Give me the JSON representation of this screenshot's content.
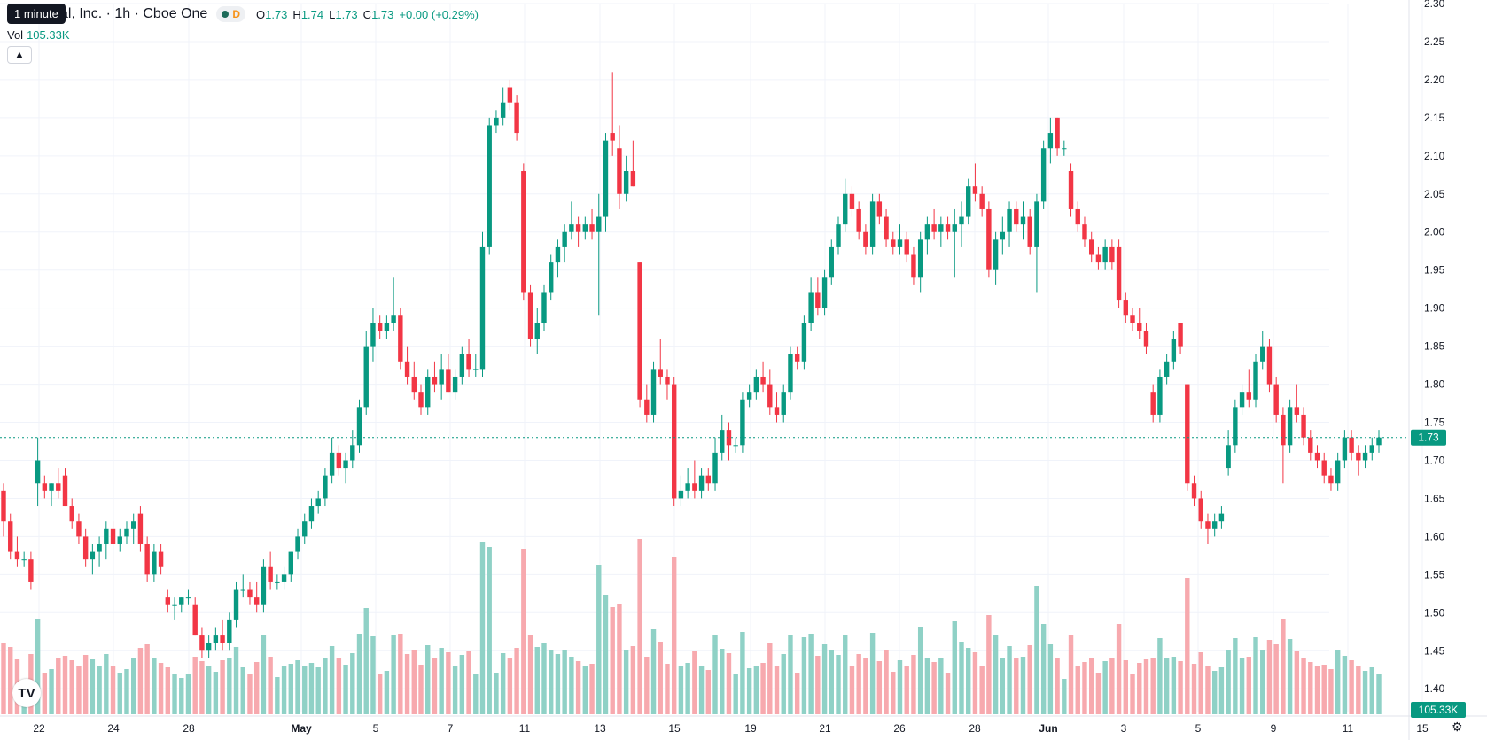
{
  "header": {
    "tooltip": "1 minute",
    "symbol": "ital, Inc. · 1h · Cboe One",
    "badge": "D",
    "o_label": "O",
    "o": "1.73",
    "h_label": "H",
    "h": "1.74",
    "l_label": "L",
    "l": "1.73",
    "c_label": "C",
    "c": "1.73",
    "change": "+0.00 (+0.29%)"
  },
  "volume": {
    "label": "Vol",
    "value": "105.33K"
  },
  "colors": {
    "up": "#089981",
    "down": "#f23645",
    "up_vol": "#8fd1c6",
    "down_vol": "#f7a9ae",
    "grid": "#f0f3fa"
  },
  "chart_data": {
    "type": "candlestick",
    "y_axis": {
      "min": 1.37,
      "max": 2.3,
      "ticks": [
        "2.30",
        "2.25",
        "2.20",
        "2.15",
        "2.10",
        "2.05",
        "2.00",
        "1.95",
        "1.90",
        "1.85",
        "1.80",
        "1.75",
        "1.70",
        "1.65",
        "1.60",
        "1.55",
        "1.50",
        "1.45",
        "1.40"
      ]
    },
    "x_ticks": [
      "22",
      "24",
      "28",
      "May",
      "5",
      "7",
      "11",
      "13",
      "15",
      "19",
      "21",
      "26",
      "28",
      "Jun",
      "3",
      "5",
      "9",
      "11",
      "15"
    ],
    "last_price": "1.73",
    "last_volume": "105.33K",
    "candles_approx": [
      [
        1.66,
        1.67,
        1.6,
        1.62
      ],
      [
        1.62,
        1.63,
        1.57,
        1.58
      ],
      [
        1.58,
        1.6,
        1.56,
        1.57
      ],
      [
        1.57,
        1.58,
        1.56,
        1.57
      ],
      [
        1.57,
        1.58,
        1.53,
        1.54
      ],
      [
        1.67,
        1.73,
        1.64,
        1.7
      ],
      [
        1.67,
        1.68,
        1.65,
        1.66
      ],
      [
        1.66,
        1.67,
        1.64,
        1.67
      ],
      [
        1.67,
        1.69,
        1.65,
        1.66
      ],
      [
        1.68,
        1.69,
        1.64,
        1.64
      ],
      [
        1.64,
        1.65,
        1.61,
        1.62
      ],
      [
        1.62,
        1.63,
        1.59,
        1.6
      ],
      [
        1.6,
        1.61,
        1.56,
        1.57
      ],
      [
        1.57,
        1.59,
        1.55,
        1.58
      ],
      [
        1.58,
        1.6,
        1.56,
        1.59
      ],
      [
        1.59,
        1.62,
        1.57,
        1.61
      ],
      [
        1.61,
        1.62,
        1.59,
        1.59
      ],
      [
        1.59,
        1.61,
        1.58,
        1.6
      ],
      [
        1.6,
        1.62,
        1.59,
        1.61
      ],
      [
        1.61,
        1.63,
        1.59,
        1.62
      ],
      [
        1.63,
        1.64,
        1.58,
        1.59
      ],
      [
        1.59,
        1.6,
        1.54,
        1.55
      ],
      [
        1.55,
        1.59,
        1.54,
        1.58
      ],
      [
        1.58,
        1.59,
        1.55,
        1.56
      ],
      [
        1.52,
        1.53,
        1.5,
        1.51
      ],
      [
        1.51,
        1.52,
        1.49,
        1.51
      ],
      [
        1.51,
        1.52,
        1.5,
        1.52
      ],
      [
        1.52,
        1.53,
        1.51,
        1.52
      ],
      [
        1.51,
        1.52,
        1.47,
        1.47
      ],
      [
        1.47,
        1.48,
        1.44,
        1.45
      ],
      [
        1.45,
        1.47,
        1.44,
        1.46
      ],
      [
        1.46,
        1.48,
        1.45,
        1.47
      ],
      [
        1.47,
        1.49,
        1.45,
        1.46
      ],
      [
        1.46,
        1.5,
        1.45,
        1.49
      ],
      [
        1.49,
        1.54,
        1.48,
        1.53
      ],
      [
        1.53,
        1.55,
        1.52,
        1.53
      ],
      [
        1.53,
        1.54,
        1.51,
        1.52
      ],
      [
        1.52,
        1.54,
        1.5,
        1.51
      ],
      [
        1.51,
        1.57,
        1.5,
        1.56
      ],
      [
        1.56,
        1.58,
        1.53,
        1.54
      ],
      [
        1.54,
        1.55,
        1.53,
        1.54
      ],
      [
        1.54,
        1.56,
        1.53,
        1.55
      ],
      [
        1.55,
        1.58,
        1.54,
        1.58
      ],
      [
        1.58,
        1.61,
        1.57,
        1.6
      ],
      [
        1.6,
        1.63,
        1.59,
        1.62
      ],
      [
        1.62,
        1.65,
        1.61,
        1.64
      ],
      [
        1.64,
        1.66,
        1.63,
        1.65
      ],
      [
        1.65,
        1.69,
        1.64,
        1.68
      ],
      [
        1.68,
        1.73,
        1.67,
        1.71
      ],
      [
        1.71,
        1.72,
        1.68,
        1.69
      ],
      [
        1.69,
        1.71,
        1.67,
        1.7
      ],
      [
        1.7,
        1.74,
        1.69,
        1.72
      ],
      [
        1.72,
        1.78,
        1.71,
        1.77
      ],
      [
        1.77,
        1.87,
        1.76,
        1.85
      ],
      [
        1.85,
        1.9,
        1.83,
        1.88
      ],
      [
        1.88,
        1.89,
        1.86,
        1.87
      ],
      [
        1.87,
        1.89,
        1.86,
        1.88
      ],
      [
        1.88,
        1.94,
        1.87,
        1.89
      ],
      [
        1.89,
        1.9,
        1.82,
        1.83
      ],
      [
        1.83,
        1.85,
        1.8,
        1.81
      ],
      [
        1.81,
        1.83,
        1.78,
        1.79
      ],
      [
        1.79,
        1.8,
        1.76,
        1.77
      ],
      [
        1.77,
        1.82,
        1.76,
        1.81
      ],
      [
        1.81,
        1.83,
        1.79,
        1.8
      ],
      [
        1.8,
        1.84,
        1.78,
        1.82
      ],
      [
        1.82,
        1.84,
        1.79,
        1.79
      ],
      [
        1.79,
        1.82,
        1.78,
        1.81
      ],
      [
        1.81,
        1.85,
        1.8,
        1.84
      ],
      [
        1.84,
        1.86,
        1.81,
        1.82
      ],
      [
        1.82,
        1.84,
        1.81,
        1.82
      ],
      [
        1.82,
        2.0,
        1.81,
        1.98
      ],
      [
        1.98,
        2.15,
        1.97,
        2.14
      ],
      [
        2.14,
        2.16,
        2.13,
        2.15
      ],
      [
        2.15,
        2.19,
        2.14,
        2.17
      ],
      [
        2.19,
        2.2,
        2.16,
        2.17
      ],
      [
        2.17,
        2.18,
        2.12,
        2.13
      ],
      [
        2.08,
        2.09,
        1.91,
        1.92
      ],
      [
        1.92,
        1.93,
        1.85,
        1.86
      ],
      [
        1.86,
        1.9,
        1.84,
        1.88
      ],
      [
        1.88,
        1.93,
        1.87,
        1.92
      ],
      [
        1.92,
        1.97,
        1.91,
        1.96
      ],
      [
        1.96,
        1.99,
        1.94,
        1.98
      ],
      [
        1.98,
        2.01,
        1.96,
        2.0
      ],
      [
        2.0,
        2.04,
        1.99,
        2.01
      ],
      [
        2.01,
        2.02,
        1.98,
        2.0
      ],
      [
        2.0,
        2.02,
        1.99,
        2.01
      ],
      [
        2.01,
        2.03,
        1.99,
        2.0
      ],
      [
        2.0,
        2.05,
        1.89,
        2.02
      ],
      [
        2.02,
        2.13,
        2.0,
        2.12
      ],
      [
        2.13,
        2.21,
        2.1,
        2.12
      ],
      [
        2.11,
        2.14,
        2.03,
        2.05
      ],
      [
        2.05,
        2.1,
        2.04,
        2.08
      ],
      [
        2.08,
        2.12,
        2.06,
        2.06
      ],
      [
        1.96,
        1.96,
        1.77,
        1.78
      ],
      [
        1.78,
        1.8,
        1.75,
        1.76
      ],
      [
        1.76,
        1.83,
        1.75,
        1.82
      ],
      [
        1.82,
        1.86,
        1.8,
        1.81
      ],
      [
        1.81,
        1.82,
        1.78,
        1.8
      ],
      [
        1.8,
        1.81,
        1.64,
        1.65
      ],
      [
        1.65,
        1.68,
        1.64,
        1.66
      ],
      [
        1.66,
        1.69,
        1.65,
        1.67
      ],
      [
        1.67,
        1.7,
        1.65,
        1.66
      ],
      [
        1.66,
        1.69,
        1.65,
        1.68
      ],
      [
        1.68,
        1.69,
        1.66,
        1.67
      ],
      [
        1.67,
        1.73,
        1.66,
        1.71
      ],
      [
        1.71,
        1.76,
        1.7,
        1.74
      ],
      [
        1.74,
        1.75,
        1.7,
        1.72
      ],
      [
        1.72,
        1.73,
        1.71,
        1.72
      ],
      [
        1.72,
        1.79,
        1.71,
        1.78
      ],
      [
        1.78,
        1.8,
        1.77,
        1.79
      ],
      [
        1.79,
        1.82,
        1.78,
        1.81
      ],
      [
        1.81,
        1.83,
        1.79,
        1.8
      ],
      [
        1.8,
        1.82,
        1.76,
        1.77
      ],
      [
        1.77,
        1.79,
        1.75,
        1.76
      ],
      [
        1.76,
        1.8,
        1.75,
        1.79
      ],
      [
        1.79,
        1.85,
        1.78,
        1.84
      ],
      [
        1.84,
        1.85,
        1.82,
        1.83
      ],
      [
        1.83,
        1.89,
        1.82,
        1.88
      ],
      [
        1.88,
        1.94,
        1.87,
        1.92
      ],
      [
        1.92,
        1.94,
        1.89,
        1.9
      ],
      [
        1.9,
        1.95,
        1.89,
        1.94
      ],
      [
        1.94,
        1.99,
        1.93,
        1.98
      ],
      [
        1.98,
        2.02,
        1.97,
        2.01
      ],
      [
        2.01,
        2.07,
        2.0,
        2.05
      ],
      [
        2.05,
        2.06,
        2.02,
        2.03
      ],
      [
        2.03,
        2.04,
        1.99,
        2.0
      ],
      [
        2.0,
        2.01,
        1.97,
        1.98
      ],
      [
        1.98,
        2.05,
        1.97,
        2.04
      ],
      [
        2.04,
        2.05,
        2.01,
        2.02
      ],
      [
        2.02,
        2.03,
        1.98,
        1.99
      ],
      [
        1.99,
        2.0,
        1.97,
        1.98
      ],
      [
        1.98,
        2.01,
        1.97,
        1.99
      ],
      [
        1.99,
        2.0,
        1.96,
        1.97
      ],
      [
        1.97,
        1.98,
        1.93,
        1.94
      ],
      [
        1.94,
        2.0,
        1.92,
        1.99
      ],
      [
        1.99,
        2.02,
        1.97,
        2.01
      ],
      [
        2.01,
        2.03,
        1.99,
        2.0
      ],
      [
        2.0,
        2.02,
        1.98,
        2.01
      ],
      [
        2.01,
        2.02,
        1.99,
        2.0
      ],
      [
        2.0,
        2.03,
        1.94,
        2.01
      ],
      [
        2.01,
        2.04,
        1.98,
        2.02
      ],
      [
        2.02,
        2.07,
        2.01,
        2.06
      ],
      [
        2.06,
        2.09,
        2.04,
        2.05
      ],
      [
        2.05,
        2.06,
        2.02,
        2.03
      ],
      [
        2.03,
        2.04,
        1.94,
        1.95
      ],
      [
        1.95,
        2.0,
        1.93,
        1.99
      ],
      [
        1.99,
        2.02,
        1.97,
        2.0
      ],
      [
        2.0,
        2.04,
        1.98,
        2.03
      ],
      [
        2.03,
        2.04,
        2.0,
        2.01
      ],
      [
        2.01,
        2.04,
        1.99,
        2.02
      ],
      [
        2.02,
        2.03,
        1.97,
        1.98
      ],
      [
        1.98,
        2.05,
        1.92,
        2.04
      ],
      [
        2.04,
        2.12,
        2.03,
        2.11
      ],
      [
        2.11,
        2.15,
        2.09,
        2.13
      ],
      [
        2.15,
        2.15,
        2.1,
        2.11
      ],
      [
        2.11,
        2.12,
        2.1,
        2.11
      ],
      [
        2.08,
        2.09,
        2.02,
        2.03
      ],
      [
        2.03,
        2.04,
        2.0,
        2.01
      ],
      [
        2.01,
        2.02,
        1.98,
        1.99
      ],
      [
        1.99,
        2.0,
        1.96,
        1.97
      ],
      [
        1.97,
        1.98,
        1.95,
        1.96
      ],
      [
        1.96,
        1.99,
        1.95,
        1.98
      ],
      [
        1.98,
        1.99,
        1.95,
        1.96
      ],
      [
        1.98,
        1.99,
        1.9,
        1.91
      ],
      [
        1.91,
        1.92,
        1.88,
        1.89
      ],
      [
        1.89,
        1.9,
        1.87,
        1.88
      ],
      [
        1.88,
        1.9,
        1.86,
        1.87
      ],
      [
        1.87,
        1.88,
        1.84,
        1.85
      ],
      [
        1.79,
        1.8,
        1.75,
        1.76
      ],
      [
        1.76,
        1.82,
        1.75,
        1.81
      ],
      [
        1.81,
        1.84,
        1.8,
        1.83
      ],
      [
        1.83,
        1.87,
        1.82,
        1.86
      ],
      [
        1.88,
        1.88,
        1.84,
        1.85
      ],
      [
        1.8,
        1.8,
        1.66,
        1.67
      ],
      [
        1.67,
        1.68,
        1.64,
        1.65
      ],
      [
        1.65,
        1.66,
        1.61,
        1.62
      ],
      [
        1.62,
        1.63,
        1.59,
        1.61
      ],
      [
        1.61,
        1.63,
        1.6,
        1.62
      ],
      [
        1.62,
        1.64,
        1.61,
        1.63
      ],
      [
        1.69,
        1.74,
        1.68,
        1.72
      ],
      [
        1.72,
        1.78,
        1.71,
        1.77
      ],
      [
        1.77,
        1.8,
        1.76,
        1.79
      ],
      [
        1.79,
        1.82,
        1.77,
        1.78
      ],
      [
        1.78,
        1.84,
        1.77,
        1.83
      ],
      [
        1.83,
        1.87,
        1.82,
        1.85
      ],
      [
        1.85,
        1.86,
        1.79,
        1.8
      ],
      [
        1.8,
        1.81,
        1.75,
        1.76
      ],
      [
        1.76,
        1.77,
        1.67,
        1.72
      ],
      [
        1.72,
        1.78,
        1.71,
        1.77
      ],
      [
        1.77,
        1.8,
        1.75,
        1.76
      ],
      [
        1.76,
        1.77,
        1.72,
        1.73
      ],
      [
        1.73,
        1.74,
        1.7,
        1.71
      ],
      [
        1.71,
        1.72,
        1.69,
        1.7
      ],
      [
        1.7,
        1.71,
        1.67,
        1.68
      ],
      [
        1.68,
        1.69,
        1.66,
        1.67
      ],
      [
        1.67,
        1.71,
        1.66,
        1.7
      ],
      [
        1.7,
        1.74,
        1.69,
        1.73
      ],
      [
        1.73,
        1.74,
        1.7,
        1.71
      ],
      [
        1.71,
        1.72,
        1.68,
        1.7
      ],
      [
        1.7,
        1.72,
        1.69,
        1.71
      ],
      [
        1.71,
        1.73,
        1.7,
        1.72
      ],
      [
        1.72,
        1.74,
        1.71,
        1.73
      ]
    ]
  }
}
